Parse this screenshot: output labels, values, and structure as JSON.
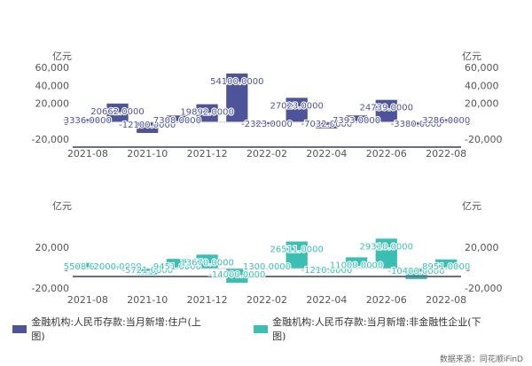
{
  "chart_data": [
    {
      "type": "bar",
      "ylabel_left": "亿元",
      "ylabel_right": "亿元",
      "ylim": [
        -20000,
        60000
      ],
      "yticks": [
        -20000,
        0,
        20000,
        40000,
        60000
      ],
      "ytick_labels": [
        "-20,000",
        "0",
        "20,000",
        "40,000",
        "60,000"
      ],
      "x": [
        "2021-08",
        "2021-09",
        "2021-10",
        "2021-11",
        "2021-12",
        "2022-01",
        "2022-02",
        "2022-03",
        "2022-04",
        "2022-05",
        "2022-06",
        "2022-07",
        "2022-08"
      ],
      "xtick_labels": [
        "2021-08",
        "2021-10",
        "2021-12",
        "2022-02",
        "2022-04",
        "2022-06",
        "2022-08"
      ],
      "series": [
        {
          "name": "金融机构:人民币存款:当月新增:住户(上图)",
          "color": "#4e5499",
          "values": [
            3336,
            20662,
            -12100,
            7308,
            19892,
            54100,
            -2323,
            27023,
            -7032,
            7393,
            24739,
            -3380,
            3286
          ],
          "data_labels": [
            "3336.0000",
            "20662.0000",
            "-12100.0000",
            "7308.0000",
            "19892.0000",
            "54100.0000",
            "-2323.0000",
            "27023.0000",
            "-7032.0000",
            "7393.0000",
            "24739.0000",
            "-3380.0000",
            "3286.0000"
          ]
        }
      ]
    },
    {
      "type": "bar",
      "ylabel_left": "亿元",
      "ylabel_right": "亿元",
      "ylim": [
        -20000,
        40000
      ],
      "yticks": [
        -20000,
        0,
        20000
      ],
      "ytick_labels": [
        "-20,000",
        "0",
        "20,000"
      ],
      "x": [
        "2021-08",
        "2021-09",
        "2021-10",
        "2021-11",
        "2021-12",
        "2022-01",
        "2022-02",
        "2022-03",
        "2022-04",
        "2022-05",
        "2022-06",
        "2022-07",
        "2022-08"
      ],
      "xtick_labels": [
        "2021-08",
        "2021-10",
        "2021-12",
        "2022-02",
        "2022-04",
        "2022-06",
        "2022-08"
      ],
      "series": [
        {
          "name": "金融机构:人民币存款:当月新增:非金融性企业(下图)",
          "color": "#3bbfb3",
          "values": [
            5508,
            2000,
            -5721,
            9451,
            13670,
            -14000,
            1300,
            26511,
            -1210,
            11000,
            29310,
            -10400,
            8951
          ],
          "data_labels": [
            "5508.0000",
            "2000.0000",
            "-5721.0000",
            "9451.0000",
            "13670.0000",
            "-14000.0000",
            "1300.0000",
            "26511.0000",
            "-1210.0000",
            "11000.0000",
            "29310.0000",
            "-10400.0000",
            "8951.0000"
          ]
        }
      ]
    }
  ],
  "legend": {
    "items": [
      {
        "label": "金融机构:人民币存款:当月新增:住户(上图)",
        "color": "#4e5499"
      },
      {
        "label": "金融机构:人民币存款:当月新增:非金融性企业(下图)",
        "color": "#3bbfb3"
      }
    ]
  },
  "source": "数据来源：同花顺iFinD"
}
